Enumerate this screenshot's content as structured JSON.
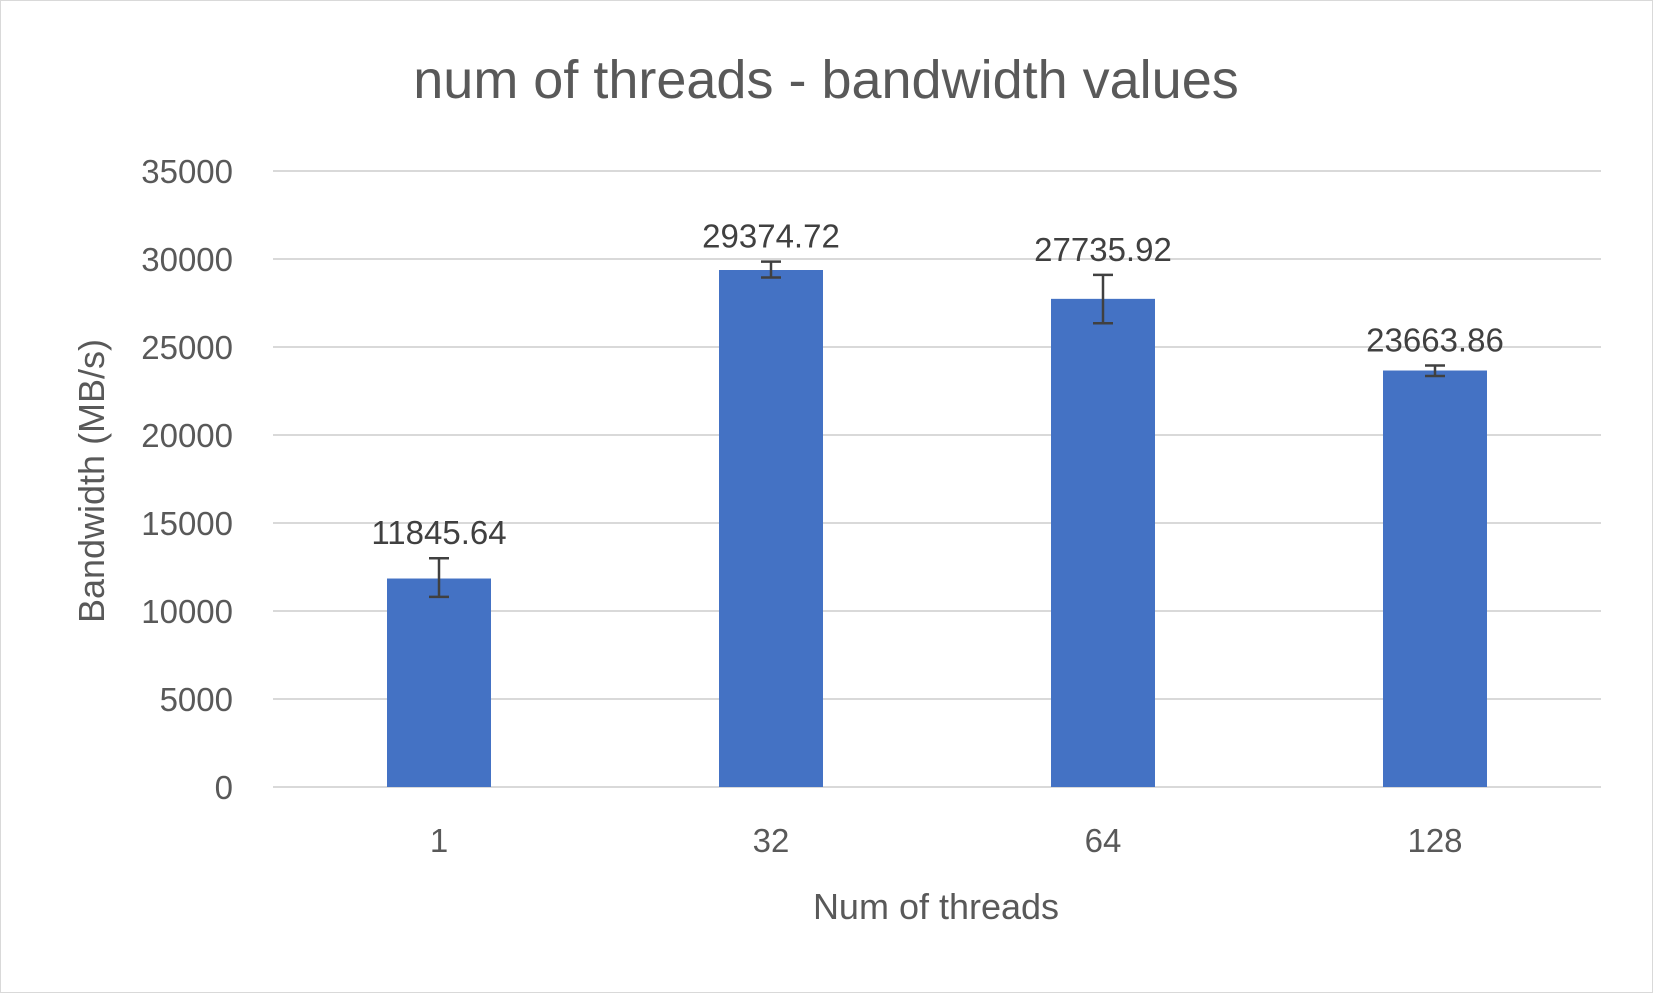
{
  "chart_data": {
    "type": "bar",
    "title": "num of threads - bandwidth values",
    "xlabel": "Num of threads",
    "ylabel": "Bandwidth (MB/s)",
    "categories": [
      "1",
      "32",
      "64",
      "128"
    ],
    "values": [
      11845.64,
      29374.72,
      27735.92,
      23663.86
    ],
    "data_labels": [
      "11845.64",
      "29374.72",
      "27735.92",
      "23663.86"
    ],
    "error_bars": [
      [
        10800,
        13000
      ],
      [
        28950,
        29850
      ],
      [
        26350,
        29100
      ],
      [
        23350,
        23950
      ]
    ],
    "ylim": [
      0,
      35000
    ],
    "yticks": [
      0,
      5000,
      10000,
      15000,
      20000,
      25000,
      30000,
      35000
    ],
    "ytick_labels": [
      "0",
      "5000",
      "10000",
      "15000",
      "20000",
      "25000",
      "30000",
      "35000"
    ],
    "grid": true,
    "legend": "none",
    "colors": {
      "bar": "#4472c4",
      "text": "#595959",
      "grid": "#d9d9d9"
    }
  }
}
